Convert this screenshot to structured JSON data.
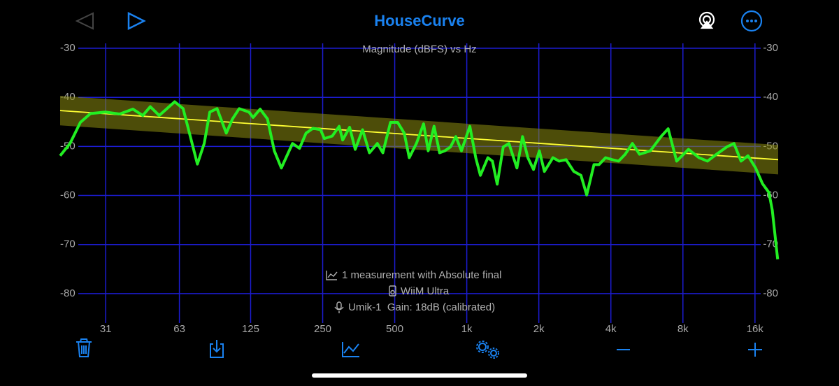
{
  "header": {
    "title": "HouseCurve"
  },
  "chart_data": {
    "type": "line",
    "title": "Magnitude (dBFS) vs Hz",
    "xscale": "log",
    "xlim": [
      20,
      20000
    ],
    "xticks": [
      31,
      63,
      125,
      250,
      500,
      {
        "value": 1000,
        "label": "1k"
      },
      {
        "value": 2000,
        "label": "2k"
      },
      {
        "value": 4000,
        "label": "4k"
      },
      {
        "value": 8000,
        "label": "8k"
      },
      {
        "value": 16000,
        "label": "16k"
      }
    ],
    "ylim": [
      -86,
      -29
    ],
    "yticks": [
      -30,
      -40,
      -50,
      -60,
      -70,
      -80
    ],
    "grid": true,
    "grid_color": "#1c1cd0",
    "band": {
      "color": "#8c8c10",
      "x": [
        20,
        20000
      ],
      "upper": [
        -39.7,
        -49.7
      ],
      "lower": [
        -45.7,
        -55.7
      ]
    },
    "series": [
      {
        "color": "#22ee22",
        "x": [
          20,
          22,
          24.3,
          26.8,
          30.9,
          35.5,
          40.3,
          44.3,
          47.6,
          51.9,
          60.2,
          65.3,
          70,
          74.9,
          80,
          84.4,
          90.5,
          98.9,
          105,
          112,
          123,
          128,
          137,
          147,
          157,
          168,
          187,
          200,
          213,
          228,
          245,
          254,
          274,
          293,
          303,
          324,
          342,
          367,
          392,
          423,
          446,
          480,
          514,
          548,
          575,
          616,
          660,
          690,
          730,
          770,
          810,
          855,
          900,
          950,
          1030,
          1090,
          1140,
          1225,
          1280,
          1340,
          1420,
          1500,
          1620,
          1710,
          1800,
          1900,
          2010,
          2110,
          2290,
          2430,
          2600,
          2800,
          3000,
          3170,
          3400,
          3570,
          3800,
          4050,
          4310,
          4590,
          4920,
          5270,
          5850,
          6480,
          6940,
          7530,
          8440,
          9340,
          10130,
          11050,
          12200,
          13070,
          13990,
          14960,
          16100,
          17200,
          18300,
          18900,
          19900
        ],
        "values": [
          -51.9,
          -49.4,
          -45.1,
          -43.3,
          -43,
          -43.4,
          -42.4,
          -43.7,
          -41.9,
          -43.7,
          -40.9,
          -42.3,
          -48,
          -53.6,
          -49.4,
          -43,
          -42.3,
          -47.3,
          -44.4,
          -42.3,
          -43,
          -44.1,
          -42.4,
          -44.4,
          -50.9,
          -54.4,
          -49.4,
          -50.4,
          -47.3,
          -46.3,
          -46.6,
          -48.4,
          -47.9,
          -45.9,
          -48.7,
          -46.1,
          -50.6,
          -46.6,
          -51.3,
          -49.4,
          -51.3,
          -45.1,
          -45.1,
          -47.3,
          -52.3,
          -49.4,
          -45.4,
          -50.9,
          -45.9,
          -51.3,
          -50.9,
          -50.1,
          -48,
          -50.9,
          -45.9,
          -52.3,
          -55.9,
          -52.3,
          -53,
          -57.7,
          -50.1,
          -49.4,
          -54.4,
          -48,
          -52.3,
          -54.7,
          -50.9,
          -55.1,
          -52.3,
          -53,
          -52.7,
          -55.1,
          -55.9,
          -59.9,
          -53.7,
          -53.7,
          -52.3,
          -52.7,
          -53,
          -51.6,
          -49.4,
          -51.6,
          -50.9,
          -48,
          -46.4,
          -53,
          -50.6,
          -52.3,
          -53,
          -51.6,
          -50.1,
          -49.4,
          -53,
          -51.9,
          -54.4,
          -57.6,
          -59.4,
          -63,
          -73
        ]
      },
      {
        "color": "#ffff33",
        "x": [
          20,
          20000
        ],
        "values": [
          -42.7,
          -52.7
        ]
      }
    ]
  },
  "info": [
    "1 measurement with Absolute final",
    "WiiM Ultra",
    "Umik-1  Gain: 18dB (calibrated)"
  ]
}
